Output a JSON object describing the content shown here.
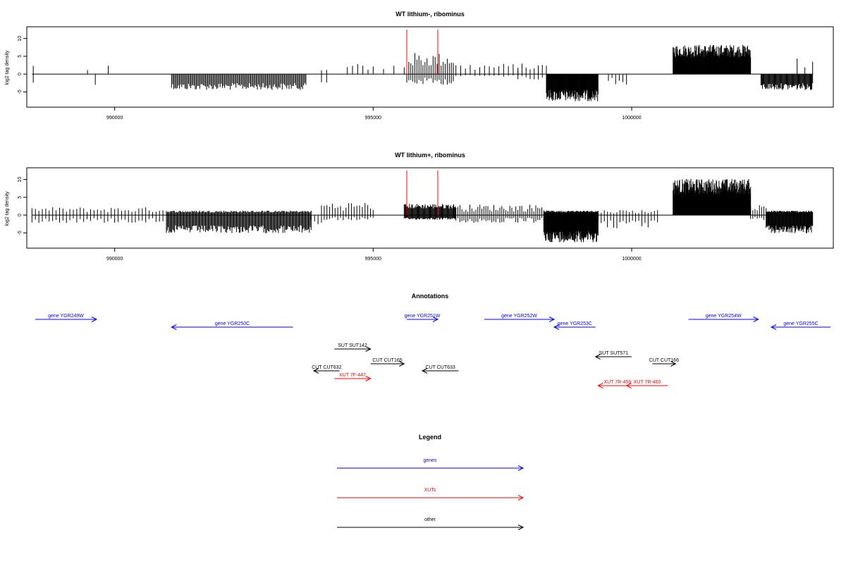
{
  "chart_data": [
    {
      "type": "bar",
      "title": "WT lithium-, ribominus",
      "ylabel": "log2 tag density",
      "xlabel": "",
      "xlim": [
        988300,
        1003900
      ],
      "ylim": [
        -8.5,
        12.5
      ],
      "yticks": [
        -5,
        0,
        5,
        10
      ],
      "xticks": [
        990000,
        995000,
        1000000
      ],
      "xtick_labels": [
        "990000",
        "995000",
        "1000000"
      ],
      "markers_x": [
        995650,
        996250
      ],
      "marker_color": "#ff0000",
      "segments": [
        {
          "x0": 988400,
          "x1": 988450,
          "kind": "sparse",
          "pos": 2,
          "neg": 3,
          "n": 1
        },
        {
          "x0": 989450,
          "x1": 989500,
          "kind": "sparse",
          "pos": 1,
          "neg": 0,
          "n": 1
        },
        {
          "x0": 989600,
          "x1": 989650,
          "kind": "sparse",
          "pos": 0,
          "neg": 2,
          "n": 1
        },
        {
          "x0": 989850,
          "x1": 989900,
          "kind": "sparse",
          "pos": 2,
          "neg": 0,
          "n": 1
        },
        {
          "x0": 991100,
          "x1": 993700,
          "kind": "dense",
          "pos": 0,
          "neg": 3.5,
          "n": 120
        },
        {
          "x0": 994000,
          "x1": 994100,
          "kind": "sparse",
          "pos": 1,
          "neg": 2,
          "n": 2
        },
        {
          "x0": 994500,
          "x1": 994900,
          "kind": "sparse",
          "pos": 2,
          "neg": 0,
          "n": 5
        },
        {
          "x0": 995000,
          "x1": 995600,
          "kind": "sparse",
          "pos": 2,
          "neg": 0,
          "n": 4
        },
        {
          "x0": 995650,
          "x1": 996550,
          "kind": "sparse",
          "pos": 4,
          "neg": 2,
          "n": 24
        },
        {
          "x0": 996600,
          "x1": 997800,
          "kind": "sparse",
          "pos": 2,
          "neg": 0.5,
          "n": 14
        },
        {
          "x0": 997800,
          "x1": 998350,
          "kind": "sparse",
          "pos": 2,
          "neg": 1,
          "n": 8
        },
        {
          "x0": 998350,
          "x1": 999350,
          "kind": "dense",
          "pos": 0,
          "neg": 6,
          "n": 110
        },
        {
          "x0": 999550,
          "x1": 999900,
          "kind": "sparse",
          "pos": 0,
          "neg": 2,
          "n": 6
        },
        {
          "x0": 1000800,
          "x1": 1002300,
          "kind": "dense",
          "pos": 6.5,
          "neg": 0,
          "n": 180
        },
        {
          "x0": 1002500,
          "x1": 1003500,
          "kind": "dense",
          "pos": 0,
          "neg": 3.5,
          "n": 70
        },
        {
          "x0": 1003200,
          "x1": 1003500,
          "kind": "sparse",
          "pos": 3,
          "neg": 0,
          "n": 3
        }
      ]
    },
    {
      "type": "bar",
      "title": "WT lithium+, ribominus",
      "ylabel": "log2 tag density",
      "xlabel": "",
      "xlim": [
        988300,
        1003900
      ],
      "ylim": [
        -8.5,
        12.5
      ],
      "yticks": [
        -5,
        0,
        5,
        10
      ],
      "xticks": [
        990000,
        995000,
        1000000
      ],
      "xtick_labels": [
        "990000",
        "995000",
        "1000000"
      ],
      "markers_x": [
        995650,
        996250
      ],
      "marker_color": "#ff0000",
      "segments": [
        {
          "x0": 988400,
          "x1": 991000,
          "kind": "sparse",
          "pos": 1.5,
          "neg": 1.5,
          "n": 40
        },
        {
          "x0": 991000,
          "x1": 993800,
          "kind": "dense",
          "pos": 1,
          "neg": 4,
          "n": 160
        },
        {
          "x0": 993800,
          "x1": 994000,
          "kind": "sparse",
          "pos": 0,
          "neg": 2,
          "n": 4
        },
        {
          "x0": 994000,
          "x1": 995000,
          "kind": "sparse",
          "pos": 2.5,
          "neg": 1,
          "n": 20
        },
        {
          "x0": 995600,
          "x1": 996600,
          "kind": "dense",
          "pos": 2.5,
          "neg": 1,
          "n": 70
        },
        {
          "x0": 996600,
          "x1": 998300,
          "kind": "sparse",
          "pos": 2,
          "neg": 1.5,
          "n": 45
        },
        {
          "x0": 998300,
          "x1": 999350,
          "kind": "dense",
          "pos": 1,
          "neg": 6,
          "n": 120
        },
        {
          "x0": 999350,
          "x1": 1000500,
          "kind": "sparse",
          "pos": 1,
          "neg": 2.5,
          "n": 20
        },
        {
          "x0": 1000800,
          "x1": 1002300,
          "kind": "dense",
          "pos": 8,
          "neg": 0,
          "n": 200
        },
        {
          "x0": 1002300,
          "x1": 1002600,
          "kind": "sparse",
          "pos": 2,
          "neg": 1,
          "n": 8
        },
        {
          "x0": 1002600,
          "x1": 1003500,
          "kind": "dense",
          "pos": 1,
          "neg": 4,
          "n": 80
        }
      ]
    }
  ],
  "annotations": {
    "title": "Annotations",
    "colors": {
      "gene": "#0000ff",
      "xut": "#ff0000",
      "other": "#000000"
    },
    "items": [
      {
        "label": "gene YGR249W",
        "kind": "gene",
        "x0": 988300,
        "x1": 989650,
        "dir": "right"
      },
      {
        "label": "gene YGR250C",
        "kind": "gene",
        "x0": 991100,
        "x1": 993450,
        "dir": "left"
      },
      {
        "label": "gene YGR251W",
        "kind": "gene",
        "x0": 995650,
        "x1": 996250,
        "dir": "right"
      },
      {
        "label": "gene YGR252W",
        "kind": "gene",
        "x0": 997150,
        "x1": 998500,
        "dir": "right"
      },
      {
        "label": "gene YGR253C",
        "kind": "gene",
        "x0": 998500,
        "x1": 999300,
        "dir": "left"
      },
      {
        "label": "gene YGR254W",
        "kind": "gene",
        "x0": 1001100,
        "x1": 1002450,
        "dir": "right"
      },
      {
        "label": "gene YGR255C",
        "kind": "gene",
        "x0": 1002700,
        "x1": 1004100,
        "dir": "left"
      },
      {
        "label": "SUT SUT142",
        "kind": "other",
        "x0": 994250,
        "x1": 994950,
        "dir": "right"
      },
      {
        "label": "CUT CUT165",
        "kind": "other",
        "x0": 994950,
        "x1": 995600,
        "dir": "right"
      },
      {
        "label": "CUT CUT632",
        "kind": "other",
        "x0": 993850,
        "x1": 994350,
        "dir": "left"
      },
      {
        "label": "CUT CUT633",
        "kind": "other",
        "x0": 995950,
        "x1": 996650,
        "dir": "left"
      },
      {
        "label": "XUT 7F-447",
        "kind": "xut",
        "x0": 994250,
        "x1": 994950,
        "dir": "right"
      },
      {
        "label": "SUT SUT571",
        "kind": "other",
        "x0": 999300,
        "x1": 1000000,
        "dir": "left"
      },
      {
        "label": "CUT CUT166",
        "kind": "other",
        "x0": 1000400,
        "x1": 1000850,
        "dir": "right"
      },
      {
        "label": "XUT 7R-459",
        "kind": "xut",
        "x0": 999350,
        "x1": 1000100,
        "dir": "left"
      },
      {
        "label": "XUT 7R-460",
        "kind": "xut",
        "x0": 999900,
        "x1": 1000700,
        "dir": "left"
      }
    ]
  },
  "legend": {
    "title": "Legend",
    "items": [
      {
        "label": "genes",
        "color": "#0000ff"
      },
      {
        "label": "XUTs",
        "color": "#ff0000"
      },
      {
        "label": "other",
        "color": "#000000"
      }
    ]
  }
}
